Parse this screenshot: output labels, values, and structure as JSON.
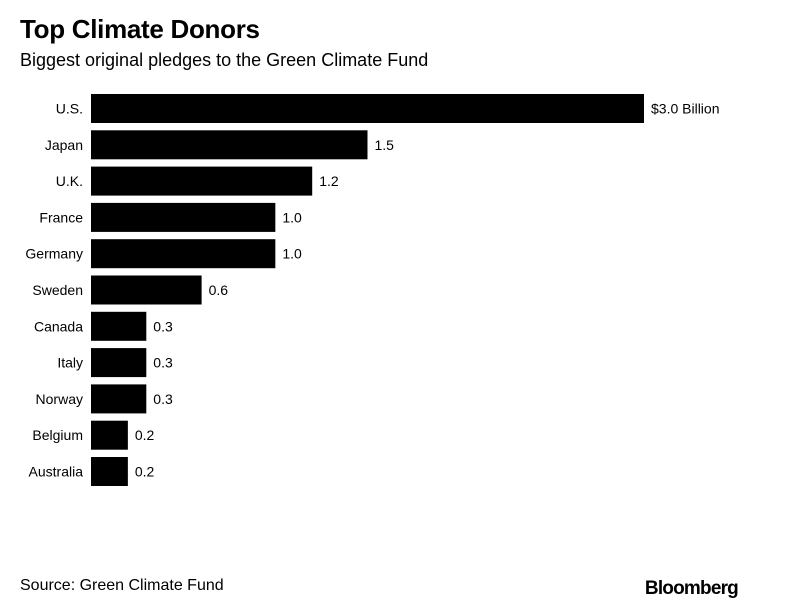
{
  "header": {
    "title": "Top Climate Donors",
    "subtitle": "Biggest original pledges to the Green Climate Fund"
  },
  "footer": {
    "source": "Source: Green Climate Fund",
    "brand": "Bloomberg"
  },
  "colors": {
    "bar": "#000000",
    "text": "#000000",
    "background": "#ffffff"
  },
  "chart_data": {
    "type": "bar",
    "orientation": "horizontal",
    "title": "Top Climate Donors",
    "subtitle": "Biggest original pledges to the Green Climate Fund",
    "xlabel": "",
    "ylabel": "",
    "unit": "$ Billion",
    "xlim": [
      0,
      3.0
    ],
    "grid": false,
    "legend": "none",
    "categories": [
      "U.S.",
      "Japan",
      "U.K.",
      "France",
      "Germany",
      "Sweden",
      "Canada",
      "Italy",
      "Norway",
      "Belgium",
      "Australia"
    ],
    "values": [
      3.0,
      1.5,
      1.2,
      1.0,
      1.0,
      0.6,
      0.3,
      0.3,
      0.3,
      0.2,
      0.2
    ],
    "data_labels": [
      "$3.0 Billion",
      "1.5",
      "1.2",
      "1.0",
      "1.0",
      "0.6",
      "0.3",
      "0.3",
      "0.3",
      "0.2",
      "0.2"
    ],
    "source": "Source: Green Climate Fund"
  }
}
